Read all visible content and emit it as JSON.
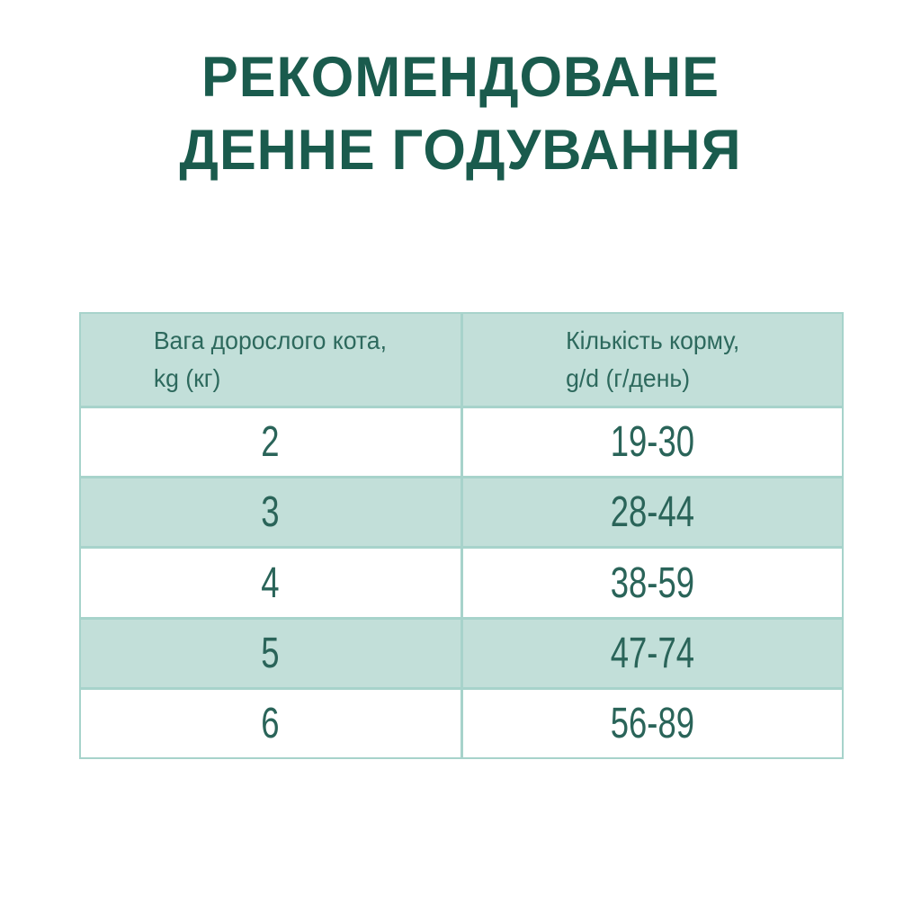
{
  "title": {
    "line1": "РЕКОМЕНДОВАНЕ",
    "line2": "ДЕННЕ ГОДУВАННЯ"
  },
  "table": {
    "headers": [
      {
        "line1": "Вага дорослого кота,",
        "line2": "kg (кг)"
      },
      {
        "line1": "Кількість корму,",
        "line2": "g/d (г/день)"
      }
    ],
    "rows": [
      {
        "weight": "2",
        "amount": "19-30"
      },
      {
        "weight": "3",
        "amount": "28-44"
      },
      {
        "weight": "4",
        "amount": "38-59"
      },
      {
        "weight": "5",
        "amount": "47-74"
      },
      {
        "weight": "6",
        "amount": "56-89"
      }
    ]
  },
  "chart_data": {
    "type": "table",
    "title": "РЕКОМЕНДОВАНЕ ДЕННЕ ГОДУВАННЯ",
    "columns": [
      "Вага дорослого кота, kg (кг)",
      "Кількість корму, g/d (г/день)"
    ],
    "rows": [
      [
        "2",
        "19-30"
      ],
      [
        "3",
        "28-44"
      ],
      [
        "4",
        "38-59"
      ],
      [
        "5",
        "47-74"
      ],
      [
        "6",
        "56-89"
      ]
    ],
    "layout": "header row + 5 data rows, alternating mint/white backgrounds, 2 equal columns"
  },
  "colors": {
    "title_text": "#1a5b4d",
    "table_text": "#2a6459",
    "header_text": "#2d695d",
    "mint_background": "#c2dfd9",
    "white_background": "#ffffff",
    "border": "#a7d3cb",
    "page_background": "#ffffff"
  }
}
